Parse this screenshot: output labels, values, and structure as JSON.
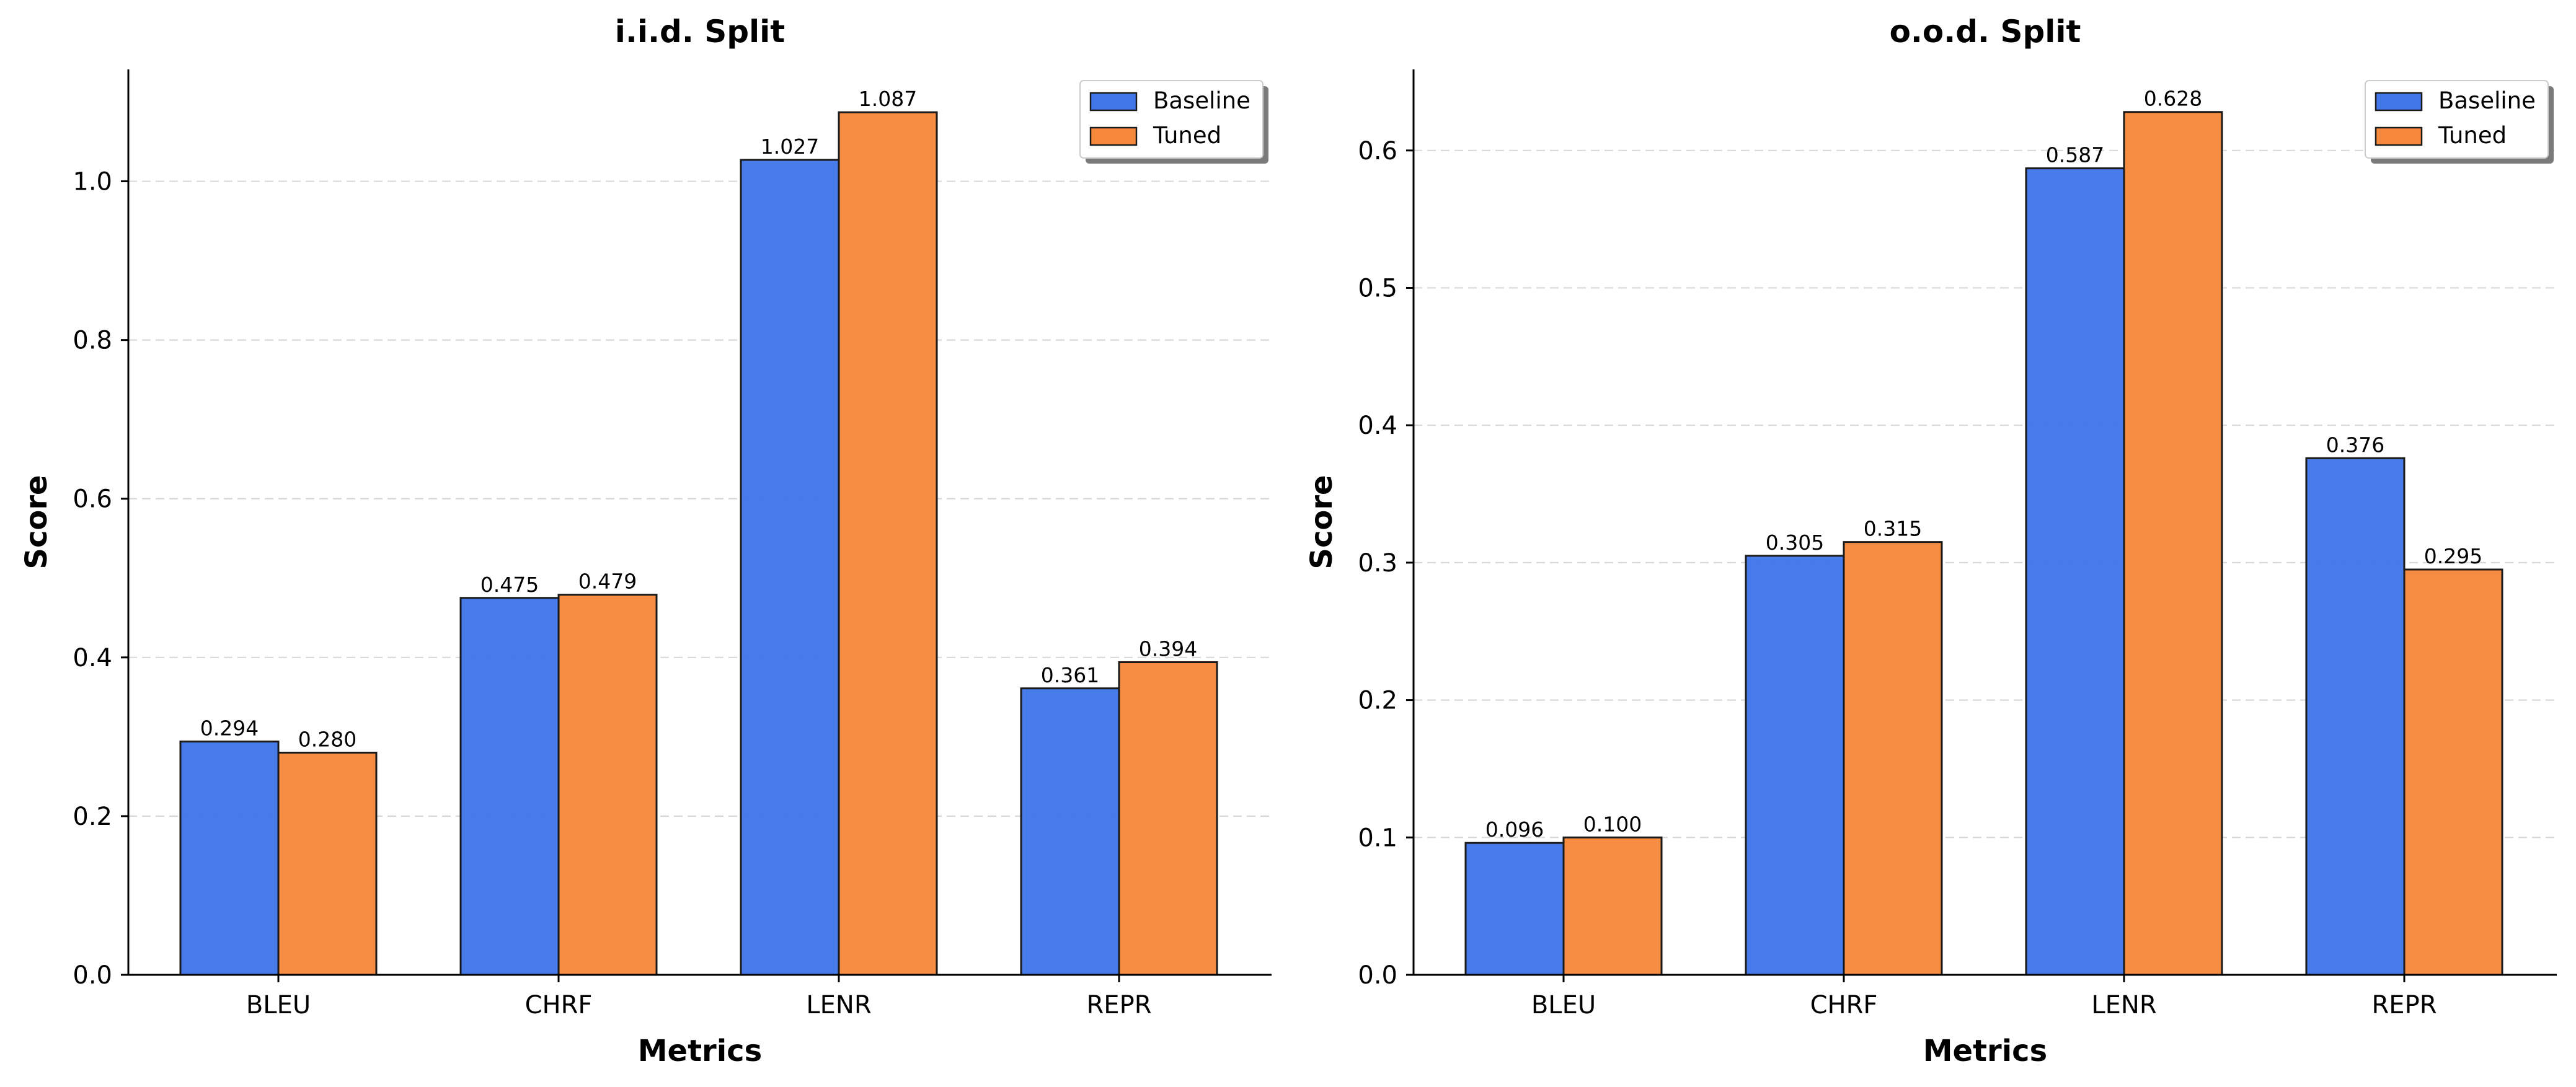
{
  "chart_data": [
    {
      "type": "bar",
      "title": "i.i.d. Split",
      "xlabel": "Metrics",
      "ylabel": "Score",
      "categories": [
        "BLEU",
        "CHRF",
        "LENR",
        "REPR"
      ],
      "series": [
        {
          "name": "Baseline",
          "color": "#4277e9",
          "values": [
            0.294,
            0.475,
            1.027,
            0.361
          ],
          "labels": [
            "0.294",
            "0.475",
            "1.027",
            "0.361"
          ]
        },
        {
          "name": "Tuned",
          "color": "#f7893c",
          "values": [
            0.28,
            0.479,
            1.087,
            0.394
          ],
          "labels": [
            "0.280",
            "0.479",
            "1.087",
            "0.394"
          ]
        }
      ],
      "ylim": [
        0,
        1.141
      ],
      "yticks": [
        0.0,
        0.2,
        0.4,
        0.6,
        0.8,
        1.0
      ],
      "ytick_labels": [
        "0.0",
        "0.2",
        "0.4",
        "0.6",
        "0.8",
        "1.0"
      ],
      "grid": "y-dashed",
      "legend_position": "top-right"
    },
    {
      "type": "bar",
      "title": "o.o.d. Split",
      "xlabel": "Metrics",
      "ylabel": "Score",
      "categories": [
        "BLEU",
        "CHRF",
        "LENR",
        "REPR"
      ],
      "series": [
        {
          "name": "Baseline",
          "color": "#4277e9",
          "values": [
            0.096,
            0.305,
            0.587,
            0.376
          ],
          "labels": [
            "0.096",
            "0.305",
            "0.587",
            "0.376"
          ]
        },
        {
          "name": "Tuned",
          "color": "#f7893c",
          "values": [
            0.1,
            0.315,
            0.628,
            0.295
          ],
          "labels": [
            "0.100",
            "0.315",
            "0.628",
            "0.295"
          ]
        }
      ],
      "ylim": [
        0,
        0.659
      ],
      "yticks": [
        0.0,
        0.1,
        0.2,
        0.3,
        0.4,
        0.5,
        0.6
      ],
      "ytick_labels": [
        "0.0",
        "0.1",
        "0.2",
        "0.3",
        "0.4",
        "0.5",
        "0.6"
      ],
      "grid": "y-dashed",
      "legend_position": "top-right"
    }
  ]
}
